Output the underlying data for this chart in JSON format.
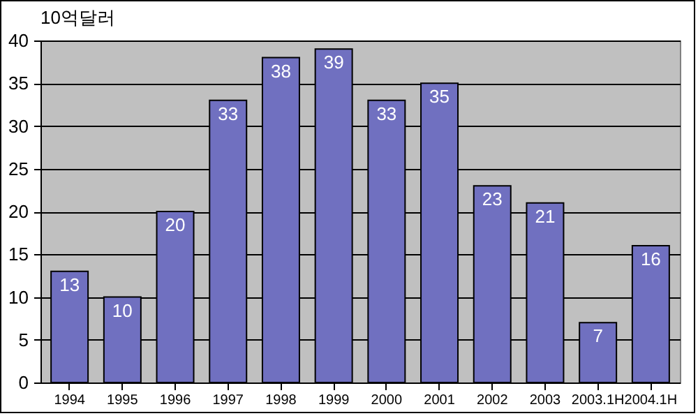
{
  "chart_data": {
    "type": "bar",
    "ylabel": "10억달러",
    "categories": [
      "1994",
      "1995",
      "1996",
      "1997",
      "1998",
      "1999",
      "2000",
      "2001",
      "2002",
      "2003",
      "2003.1H",
      "2004.1H"
    ],
    "values": [
      13,
      10,
      20,
      33,
      38,
      39,
      33,
      35,
      23,
      21,
      7,
      16
    ],
    "color": "#7070c0",
    "ylim": [
      0,
      40
    ],
    "yticks": [
      0,
      5,
      10,
      15,
      20,
      25,
      30,
      35,
      40
    ],
    "grid": "y",
    "data_labels": true
  }
}
